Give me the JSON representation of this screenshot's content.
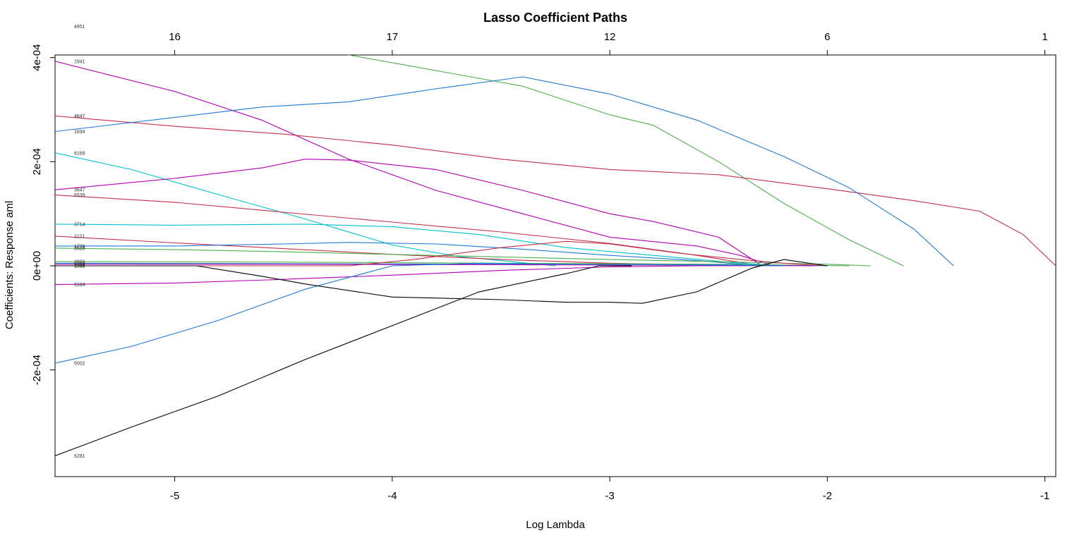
{
  "chart_data": {
    "type": "line",
    "title": "Lasso Coefficient Paths",
    "xlabel": "Log Lambda",
    "ylabel": "Coefficients: Response aml",
    "xlim": [
      -5.55,
      -0.95
    ],
    "ylim": [
      -0.000405,
      0.000405
    ],
    "x_ticks": [
      -5,
      -4,
      -3,
      -2,
      -1
    ],
    "x_tick_labels": [
      "-5",
      "-4",
      "-3",
      "-2",
      "-1"
    ],
    "y_ticks": [
      -0.0002,
      0,
      0.0002,
      0.0004
    ],
    "y_tick_labels": [
      "-2e-04",
      "0e+00",
      "2e-04",
      "4e-04"
    ],
    "top_ticks": [
      -5,
      -4,
      -3,
      -2,
      -1
    ],
    "top_tick_labels": [
      "16",
      "17",
      "12",
      "6",
      "1"
    ],
    "grid": false,
    "series": [
      {
        "name": "4951",
        "color": "#4daf4a",
        "x": [
          -5.55,
          -5.0,
          -4.6,
          -4.2,
          -3.8,
          -3.4,
          -3.0,
          -2.8,
          -2.5,
          -2.2,
          -1.9,
          -1.65
        ],
        "y": [
          0.00046,
          0.00044,
          0.00043,
          0.000405,
          0.000375,
          0.000345,
          0.00029,
          0.00027,
          0.0002,
          0.00012,
          5e-05,
          0.0
        ]
      },
      {
        "name": "1941",
        "color": "#b000b0",
        "x": [
          -5.55,
          -5.0,
          -4.6,
          -4.2,
          -3.8,
          -3.4,
          -3.0,
          -2.6,
          -2.4,
          -2.25
        ],
        "y": [
          0.000393,
          0.000335,
          0.00028,
          0.000205,
          0.000145,
          0.0001,
          5.5e-05,
          3.8e-05,
          2e-05,
          0.0
        ]
      },
      {
        "name": "4847",
        "color": "#c0304a",
        "x": [
          -5.55,
          -5.0,
          -4.5,
          -4.0,
          -3.5,
          -3.0,
          -2.5,
          -2.0,
          -1.6,
          -1.3,
          -1.1,
          -0.95
        ],
        "y": [
          0.000288,
          0.000268,
          0.000253,
          0.000232,
          0.000205,
          0.000185,
          0.000175,
          0.000148,
          0.000125,
          0.000105,
          6e-05,
          0.0
        ]
      },
      {
        "name": "1834",
        "color": "#1f78d4",
        "x": [
          -5.55,
          -5.0,
          -4.6,
          -4.2,
          -3.8,
          -3.4,
          -3.0,
          -2.6,
          -2.2,
          -1.9,
          -1.6,
          -1.42
        ],
        "y": [
          0.000258,
          0.000285,
          0.000305,
          0.000315,
          0.00034,
          0.000363,
          0.00033,
          0.00028,
          0.00021,
          0.00015,
          7e-05,
          0.0
        ]
      },
      {
        "name": "6169",
        "color": "#00c0d0",
        "x": [
          -5.55,
          -5.2,
          -4.8,
          -4.4,
          -4.0,
          -3.7,
          -3.45,
          -3.25
        ],
        "y": [
          0.000217,
          0.000185,
          0.000137,
          9e-05,
          4e-05,
          1.8e-05,
          8e-06,
          0.0
        ]
      },
      {
        "name": "3647",
        "color": "#b000b0",
        "x": [
          -5.55,
          -5.0,
          -4.6,
          -4.4,
          -4.2,
          -3.8,
          -3.4,
          -3.0,
          -2.8,
          -2.5,
          -2.3
        ],
        "y": [
          0.000146,
          0.000168,
          0.000188,
          0.000205,
          0.000203,
          0.000185,
          0.000145,
          0.0001,
          8.5e-05,
          5.5e-05,
          0.0
        ]
      },
      {
        "name": "6539",
        "color": "#c0304a",
        "x": [
          -5.55,
          -5.0,
          -4.5,
          -4.0,
          -3.5,
          -3.0,
          -2.6,
          -2.3
        ],
        "y": [
          0.000136,
          0.000122,
          0.000103,
          8.4e-05,
          6.5e-05,
          4.3e-05,
          2e-05,
          0.0
        ]
      },
      {
        "name": "3714",
        "color": "#00c0d0",
        "x": [
          -5.55,
          -5.0,
          -4.4,
          -4.0,
          -3.6,
          -3.2,
          -2.8,
          -2.4,
          -2.2
        ],
        "y": [
          8e-05,
          7.8e-05,
          8e-05,
          7.5e-05,
          6e-05,
          3.5e-05,
          2e-05,
          5e-06,
          0.0
        ]
      },
      {
        "name": "2121",
        "color": "#c0304a",
        "x": [
          -5.55,
          -5.0,
          -4.5,
          -4.0,
          -3.5,
          -3.0,
          -2.5,
          -2.2
        ],
        "y": [
          5.7e-05,
          4.4e-05,
          3.3e-05,
          2.2e-05,
          1.2e-05,
          5e-06,
          1e-06,
          0.0
        ]
      },
      {
        "name": "1726",
        "color": "#1f78d4",
        "x": [
          -5.55,
          -5.0,
          -4.5,
          -4.2,
          -3.8,
          -3.4,
          -3.0,
          -2.6,
          -2.3
        ],
        "y": [
          3.8e-05,
          3.8e-05,
          4.2e-05,
          4.5e-05,
          4.2e-05,
          3.2e-05,
          2e-05,
          1e-05,
          0.0
        ]
      },
      {
        "name": "3528",
        "color": "#4daf4a",
        "x": [
          -5.55,
          -5.0,
          -4.5,
          -4.0,
          -3.5,
          -3.0,
          -2.5,
          -2.0,
          -1.8
        ],
        "y": [
          3.4e-05,
          3.1e-05,
          2.7e-05,
          2.2e-05,
          1.7e-05,
          1.2e-05,
          8e-06,
          3e-06,
          0.0
        ]
      },
      {
        "name": "2002",
        "color": "#4daf4a",
        "x": [
          -5.55,
          -4.5,
          -3.5,
          -2.5,
          -1.9
        ],
        "y": [
          8e-06,
          7e-06,
          5e-06,
          3e-06,
          0.0
        ]
      },
      {
        "name": "1552",
        "color": "#1f78d4",
        "x": [
          -5.55,
          -4.5,
          -3.5,
          -2.5,
          -2.0
        ],
        "y": [
          5e-06,
          4e-06,
          3e-06,
          2e-06,
          0.0
        ]
      },
      {
        "name": "2358",
        "color": "#b000b0",
        "x": [
          -5.55,
          -4.5,
          -3.5,
          -2.5,
          -2.05
        ],
        "y": [
          3e-06,
          3e-06,
          2e-06,
          1e-06,
          0.0
        ]
      },
      {
        "name": "1946",
        "color": "#c0304a",
        "x": [
          -5.55,
          -4.2,
          -3.9,
          -3.5,
          -3.2,
          -3.0,
          -2.7,
          -2.4,
          -2.2,
          -2.0
        ],
        "y": [
          0.0,
          0.0,
          1.2e-05,
          3.5e-05,
          4.7e-05,
          4.2e-05,
          2.5e-05,
          1.2e-05,
          5e-06,
          0.0
        ]
      },
      {
        "name": "6184",
        "color": "#b000b0",
        "x": [
          -5.55,
          -5.0,
          -4.5,
          -4.0,
          -3.5,
          -3.0,
          -2.6,
          -2.3
        ],
        "y": [
          -3.6e-05,
          -3.3e-05,
          -2.6e-05,
          -1.8e-05,
          -9e-06,
          -2e-06,
          0.0,
          0.0
        ]
      },
      {
        "name": "5002",
        "color": "#1f78d4",
        "x": [
          -5.55,
          -5.2,
          -4.8,
          -4.4,
          -4.0,
          -3.6,
          -3.2,
          -2.8,
          -2.4,
          -2.2
        ],
        "y": [
          -0.000187,
          -0.000155,
          -0.000105,
          -4.5e-05,
          0.0,
          5e-06,
          3e-06,
          2e-06,
          1e-06,
          0.0
        ]
      },
      {
        "name": "5591",
        "color": "#000000",
        "x": [
          -5.55,
          -4.9,
          -4.6,
          -4.4,
          -4.0,
          -3.5,
          -3.2,
          -3.0,
          -2.85,
          -2.6,
          -2.35,
          -2.2,
          -2.0
        ],
        "y": [
          0.0,
          0.0,
          -2e-05,
          -3.5e-05,
          -6e-05,
          -6.5e-05,
          -7e-05,
          -7e-05,
          -7.2e-05,
          -5e-05,
          -5e-06,
          1.2e-05,
          0.0
        ]
      },
      {
        "name": "6281",
        "color": "#000000",
        "x": [
          -5.55,
          -5.2,
          -4.8,
          -4.4,
          -4.0,
          -3.6,
          -3.2,
          -3.05,
          -2.9
        ],
        "y": [
          -0.000365,
          -0.00031,
          -0.00025,
          -0.00018,
          -0.000115,
          -5e-05,
          -1.5e-05,
          0.0,
          0.0
        ]
      }
    ]
  }
}
